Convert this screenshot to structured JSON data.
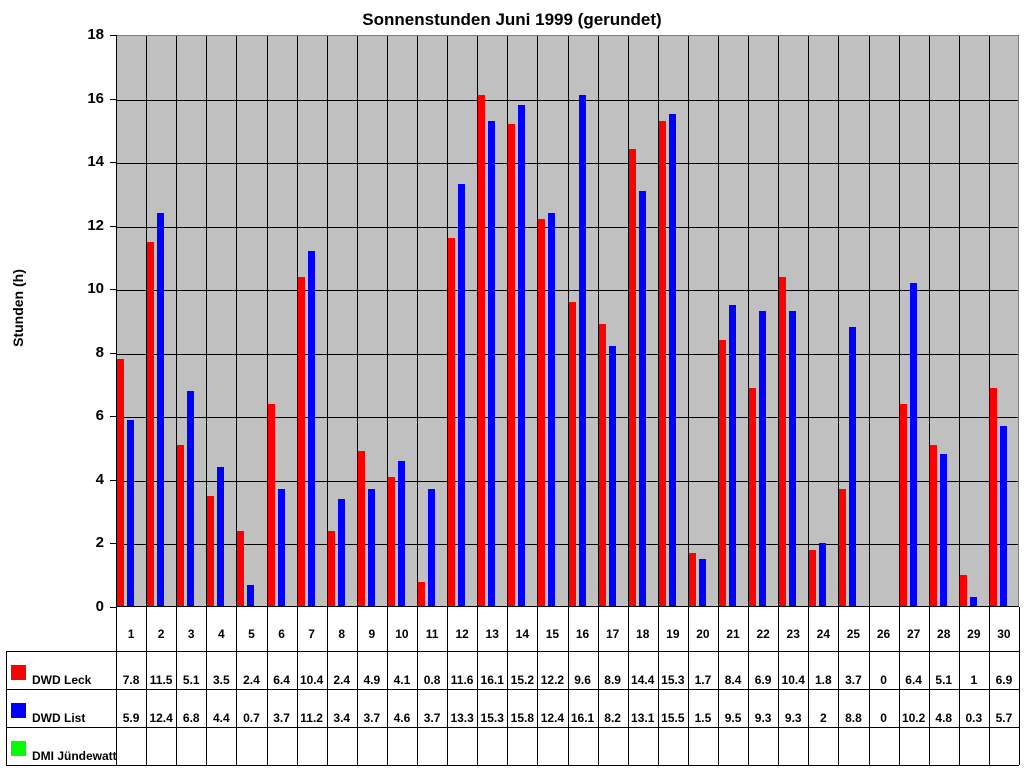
{
  "chart_data": {
    "type": "bar",
    "title": "Sonnenstunden Juni 1999 (gerundet)",
    "xlabel": "",
    "ylabel": "Stunden (h)",
    "ylim": [
      0,
      18
    ],
    "yticks": [
      0,
      2,
      4,
      6,
      8,
      10,
      12,
      14,
      16,
      18
    ],
    "grid": true,
    "legend_position": "data-table-below",
    "categories": [
      "1",
      "2",
      "3",
      "4",
      "5",
      "6",
      "7",
      "8",
      "9",
      "10",
      "11",
      "12",
      "13",
      "14",
      "15",
      "16",
      "17",
      "18",
      "19",
      "20",
      "21",
      "22",
      "23",
      "24",
      "25",
      "26",
      "27",
      "28",
      "29",
      "30"
    ],
    "series": [
      {
        "name": "DWD Leck",
        "color": "#ff0000",
        "values": [
          7.8,
          11.5,
          5.1,
          3.5,
          2.4,
          6.4,
          10.4,
          2.4,
          4.9,
          4.1,
          0.8,
          11.6,
          16.1,
          15.2,
          12.2,
          9.6,
          8.9,
          14.4,
          15.3,
          1.7,
          8.4,
          6.9,
          10.4,
          1.8,
          3.7,
          0,
          6.4,
          5.1,
          1,
          6.9
        ],
        "labels": [
          "7.8",
          "11.5",
          "5.1",
          "3.5",
          "2.4",
          "6.4",
          "10.4",
          "2.4",
          "4.9",
          "4.1",
          "0.8",
          "11.6",
          "16.1",
          "15.2",
          "12.2",
          "9.6",
          "8.9",
          "14.4",
          "15.3",
          "1.7",
          "8.4",
          "6.9",
          "10.4",
          "1.8",
          "3.7",
          "0",
          "6.4",
          "5.1",
          "1",
          "6.9"
        ]
      },
      {
        "name": "DWD List",
        "color": "#0000ff",
        "values": [
          5.9,
          12.4,
          6.8,
          4.4,
          0.7,
          3.7,
          11.2,
          3.4,
          3.7,
          4.6,
          3.7,
          13.3,
          15.3,
          15.8,
          12.4,
          16.1,
          8.2,
          13.1,
          15.5,
          1.5,
          9.5,
          9.3,
          9.3,
          2,
          8.8,
          0,
          10.2,
          4.8,
          0.3,
          5.7
        ],
        "labels": [
          "5.9",
          "12.4",
          "6.8",
          "4.4",
          "0.7",
          "3.7",
          "11.2",
          "3.4",
          "3.7",
          "4.6",
          "3.7",
          "13.3",
          "15.3",
          "15.8",
          "12.4",
          "16.1",
          "8.2",
          "13.1",
          "15.5",
          "1.5",
          "9.5",
          "9.3",
          "9.3",
          "2",
          "8.8",
          "0",
          "10.2",
          "4.8",
          "0.3",
          "5.7"
        ]
      },
      {
        "name": "DMI Jündewatt",
        "color": "#00ff00",
        "values": [
          null,
          null,
          null,
          null,
          null,
          null,
          null,
          null,
          null,
          null,
          null,
          null,
          null,
          null,
          null,
          null,
          null,
          null,
          null,
          null,
          null,
          null,
          null,
          null,
          null,
          null,
          null,
          null,
          null,
          null
        ],
        "labels": [
          "",
          "",
          "",
          "",
          "",
          "",
          "",
          "",
          "",
          "",
          "",
          "",
          "",
          "",
          "",
          "",
          "",
          "",
          "",
          "",
          "",
          "",
          "",
          "",
          "",
          "",
          "",
          "",
          "",
          ""
        ]
      }
    ]
  }
}
